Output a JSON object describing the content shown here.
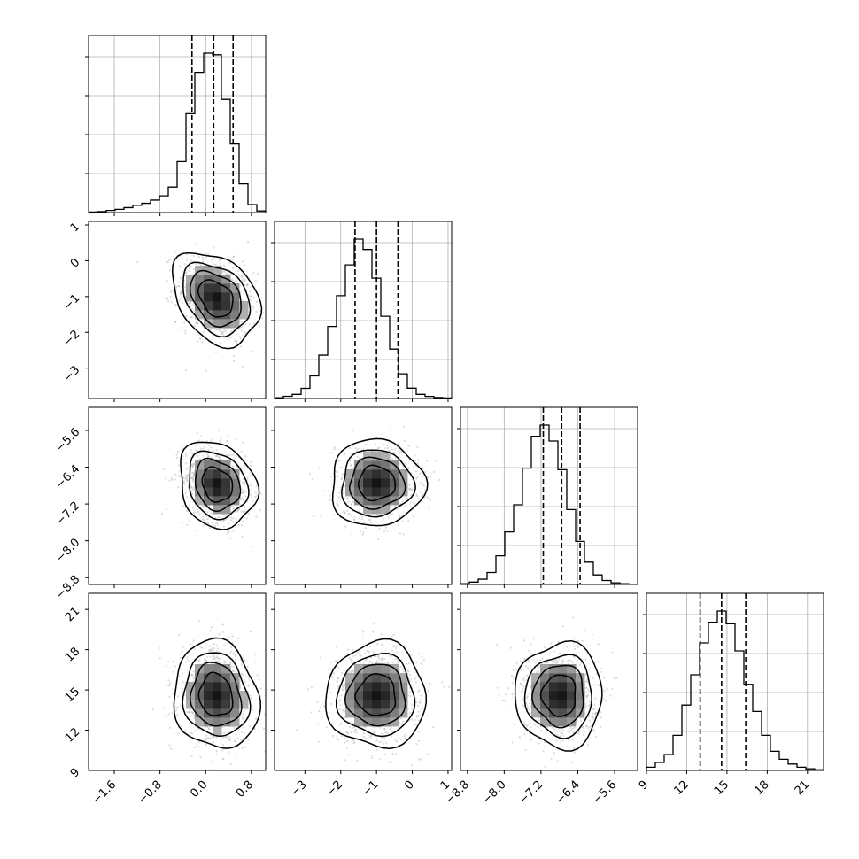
{
  "chart_data": {
    "type": "corner",
    "parameters": [
      {
        "range": [
          -2.05,
          1.05
        ],
        "ticks": [
          -1.6,
          -0.8,
          0.0,
          0.8
        ],
        "tick_labels": [
          "−1.6",
          "−0.8",
          "0.0",
          "0.8"
        ],
        "quantiles": [
          -0.24,
          0.14,
          0.48
        ],
        "hist": {
          "edges": [
            -2.05,
            -1.895,
            -1.74,
            -1.585,
            -1.43,
            -1.275,
            -1.12,
            -0.965,
            -0.81,
            -0.655,
            -0.5,
            -0.345,
            -0.19,
            -0.035,
            0.12,
            0.275,
            0.43,
            0.585,
            0.74,
            0.895,
            1.05
          ],
          "heights": [
            0.003,
            0.006,
            0.013,
            0.02,
            0.031,
            0.045,
            0.058,
            0.078,
            0.105,
            0.16,
            0.32,
            0.62,
            0.88,
            1.0,
            0.99,
            0.71,
            0.43,
            0.18,
            0.05,
            0.01
          ]
        }
      },
      {
        "range": [
          -3.85,
          1.1
        ],
        "ticks": [
          1,
          0,
          -1,
          -2,
          -3
        ],
        "tick_labels": [
          "1",
          "0",
          "−1",
          "−2",
          "−3"
        ],
        "x_ticks": [
          -3,
          -2,
          -1,
          0,
          1
        ],
        "x_tick_labels": [
          "−3",
          "−2",
          "−1",
          "0",
          "1"
        ],
        "quantiles": [
          -1.6,
          -1.0,
          -0.4
        ],
        "hist": {
          "edges": [
            -3.85,
            -3.6025,
            -3.355,
            -3.1075,
            -2.86,
            -2.6125,
            -2.365,
            -2.1175,
            -1.87,
            -1.6225,
            -1.375,
            -1.1275,
            -0.88,
            -0.6325,
            -0.385,
            -0.1375,
            0.11,
            0.3575,
            0.605,
            0.8525,
            1.1
          ],
          "heights": [
            0.005,
            0.014,
            0.026,
            0.064,
            0.142,
            0.272,
            0.452,
            0.645,
            0.838,
            1.0,
            0.935,
            0.755,
            0.516,
            0.31,
            0.155,
            0.065,
            0.026,
            0.013,
            0.006,
            0.003
          ]
        }
      },
      {
        "range": [
          -8.95,
          -5.1
        ],
        "ticks": [
          -5.6,
          -6.4,
          -7.2,
          -8.0,
          -8.8
        ],
        "tick_labels": [
          "−5.6",
          "−6.4",
          "−7.2",
          "−8.0",
          "−8.8"
        ],
        "x_ticks": [
          -8.8,
          -8.0,
          -7.2,
          -6.4,
          -5.6
        ],
        "x_tick_labels": [
          "−8.8",
          "−8.0",
          "−7.2",
          "−6.4",
          "−5.6"
        ],
        "quantiles": [
          -7.15,
          -6.75,
          -6.35
        ],
        "hist": {
          "edges": [
            -8.95,
            -8.7575,
            -8.565,
            -8.3725,
            -8.18,
            -7.9875,
            -7.795,
            -7.6025,
            -7.41,
            -7.2175,
            -7.025,
            -6.8325,
            -6.64,
            -6.4475,
            -6.255,
            -6.0625,
            -5.87,
            -5.6775,
            -5.485,
            -5.2925,
            -5.1
          ],
          "heights": [
            0.005,
            0.015,
            0.033,
            0.075,
            0.18,
            0.33,
            0.5,
            0.73,
            0.93,
            1.0,
            0.9,
            0.72,
            0.47,
            0.27,
            0.14,
            0.06,
            0.025,
            0.01,
            0.005,
            0.002
          ]
        }
      },
      {
        "range": [
          9.0,
          22.2
        ],
        "ticks": [
          21,
          18,
          15,
          12,
          9
        ],
        "tick_labels": [
          "21",
          "18",
          "15",
          "12",
          "9"
        ],
        "x_ticks": [
          9,
          12,
          15,
          18,
          21
        ],
        "x_tick_labels": [
          "9",
          "12",
          "15",
          "18",
          "21"
        ],
        "quantiles": [
          13.0,
          14.6,
          16.4
        ],
        "hist": {
          "edges": [
            9.0,
            9.66,
            10.32,
            10.98,
            11.64,
            12.3,
            12.96,
            13.62,
            14.28,
            14.94,
            15.6,
            16.26,
            16.92,
            17.58,
            18.24,
            18.9,
            19.56,
            20.22,
            20.88,
            21.54,
            22.2
          ],
          "heights": [
            0.02,
            0.05,
            0.1,
            0.22,
            0.41,
            0.6,
            0.8,
            0.93,
            1.0,
            0.92,
            0.75,
            0.54,
            0.37,
            0.22,
            0.12,
            0.07,
            0.04,
            0.02,
            0.01,
            0.004
          ]
        }
      }
    ],
    "pairs": [
      {
        "x": 0,
        "y": 1,
        "center": [
          0.18,
          -1.05
        ],
        "sd": [
          0.34,
          0.58
        ],
        "rho": -0.32
      },
      {
        "x": 0,
        "y": 2,
        "center": [
          0.2,
          -6.78
        ],
        "sd": [
          0.3,
          0.42
        ],
        "rho": -0.18
      },
      {
        "x": 1,
        "y": 2,
        "center": [
          -1.0,
          -6.75
        ],
        "sd": [
          0.58,
          0.42
        ],
        "rho": 0.0
      },
      {
        "x": 0,
        "y": 3,
        "center": [
          0.18,
          14.6
        ],
        "sd": [
          0.33,
          1.8
        ],
        "rho": -0.1
      },
      {
        "x": 1,
        "y": 3,
        "center": [
          -1.0,
          14.6
        ],
        "sd": [
          0.62,
          1.75
        ],
        "rho": 0.0
      },
      {
        "x": 2,
        "y": 3,
        "center": [
          -6.8,
          14.6
        ],
        "sd": [
          0.42,
          1.75
        ],
        "rho": 0.0
      }
    ],
    "contour_levels": [
      0.39,
      0.86,
      1.49,
      2.53
    ],
    "grid": true
  }
}
